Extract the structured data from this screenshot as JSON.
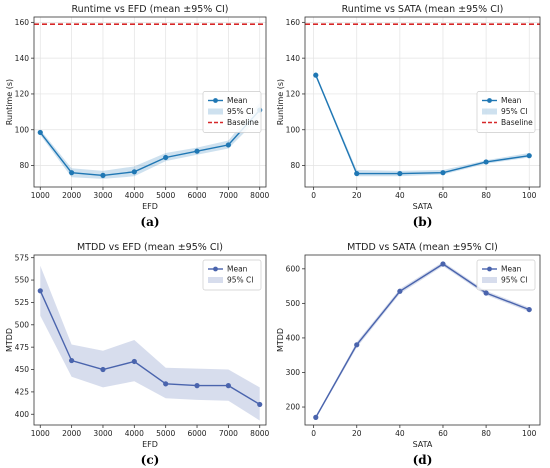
{
  "chart_data": [
    {
      "type": "line",
      "title": "Runtime vs EFD (mean ±95% CI)",
      "xlabel": "EFD",
      "ylabel": "Runtime (s)",
      "caption": "(a)",
      "x": [
        1000,
        2000,
        3000,
        4000,
        5000,
        6000,
        7000,
        8000
      ],
      "xticks": [
        1000,
        2000,
        3000,
        4000,
        5000,
        6000,
        7000,
        8000
      ],
      "xlim": [
        800,
        8200
      ],
      "ylim": [
        68,
        163
      ],
      "yticks": [
        80,
        100,
        120,
        140,
        160
      ],
      "series": [
        {
          "name": "Mean",
          "values": [
            98.5,
            76,
            74.5,
            76.5,
            84.5,
            88,
            91.5,
            111
          ],
          "ci_low": [
            97,
            73.5,
            72.5,
            74,
            82.5,
            86,
            89.5,
            107
          ],
          "ci_high": [
            100,
            78.5,
            77,
            79.5,
            87,
            90,
            94,
            115
          ]
        }
      ],
      "baseline": {
        "name": "Baseline",
        "value": 159
      },
      "ci_name": "95% CI",
      "legend": "center-right",
      "grid": true,
      "color": "#1f77b4",
      "baseline_color": "#d62728"
    },
    {
      "type": "line",
      "title": "Runtime vs SATA (mean ±95% CI)",
      "xlabel": "SATA",
      "ylabel": "Runtime (s)",
      "caption": "(b)",
      "x": [
        1,
        20,
        40,
        60,
        80,
        100
      ],
      "xticks": [
        0,
        20,
        40,
        60,
        80,
        100
      ],
      "xlim": [
        -4,
        105
      ],
      "ylim": [
        68,
        163
      ],
      "yticks": [
        80,
        100,
        120,
        140,
        160
      ],
      "series": [
        {
          "name": "Mean",
          "values": [
            130.5,
            75.5,
            75.5,
            76,
            82,
            85.5
          ],
          "ci_low": [
            129.5,
            74,
            74,
            75,
            81,
            84.5
          ],
          "ci_high": [
            131.5,
            77.5,
            77,
            77.5,
            83,
            87
          ]
        }
      ],
      "baseline": {
        "name": "Baseline",
        "value": 159
      },
      "ci_name": "95% CI",
      "legend": "center-right",
      "grid": true,
      "color": "#1f77b4",
      "baseline_color": "#d62728"
    },
    {
      "type": "line",
      "title": "MTDD vs EFD (mean ±95% CI)",
      "xlabel": "EFD",
      "ylabel": "MTDD",
      "caption": "(c)",
      "x": [
        1000,
        2000,
        3000,
        4000,
        5000,
        6000,
        7000,
        8000
      ],
      "xticks": [
        1000,
        2000,
        3000,
        4000,
        5000,
        6000,
        7000,
        8000
      ],
      "xlim": [
        800,
        8200
      ],
      "ylim": [
        388,
        578
      ],
      "yticks": [
        400,
        425,
        450,
        475,
        500,
        525,
        550,
        575
      ],
      "series": [
        {
          "name": "Mean",
          "values": [
            538,
            460,
            450,
            459,
            434,
            432,
            432,
            411
          ],
          "ci_low": [
            510,
            442,
            430,
            437,
            418,
            416,
            415,
            393
          ],
          "ci_high": [
            566,
            478,
            471,
            483,
            452,
            451,
            450,
            430
          ]
        }
      ],
      "ci_name": "95% CI",
      "legend": "top-right",
      "grid": false,
      "color": "#4a64ad"
    },
    {
      "type": "line",
      "title": "MTDD vs SATA (mean ±95% CI)",
      "xlabel": "SATA",
      "ylabel": "MTDD",
      "caption": "(d)",
      "x": [
        1,
        20,
        40,
        60,
        80,
        100
      ],
      "xticks": [
        0,
        20,
        40,
        60,
        80,
        100
      ],
      "xlim": [
        -4,
        105
      ],
      "ylim": [
        148,
        640
      ],
      "yticks": [
        200,
        300,
        400,
        500,
        600
      ],
      "series": [
        {
          "name": "Mean",
          "values": [
            170,
            380,
            535,
            614,
            530,
            482
          ],
          "ci_low": [
            166,
            372,
            528,
            608,
            524,
            476
          ],
          "ci_high": [
            174,
            388,
            542,
            620,
            536,
            488
          ]
        }
      ],
      "ci_name": "95% CI",
      "legend": "top-right",
      "grid": false,
      "color": "#4a64ad"
    }
  ]
}
